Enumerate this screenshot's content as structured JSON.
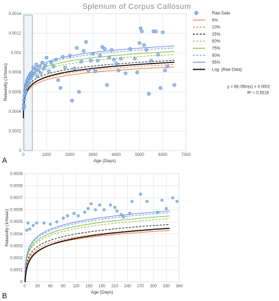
{
  "colors": {
    "raw": "#5b8fd6",
    "p5": "#ef7b45",
    "p10": "#ef7b45",
    "p25": "#222222",
    "p50": "#7fc241",
    "p75": "#7fc241",
    "p90": "#6b8fe0",
    "p95": "#6b8fe0",
    "log": "#000000"
  },
  "chart_data": [
    {
      "type": "scatter",
      "panel_label": "A",
      "title": "Splenium of Corpus Callosum",
      "xlabel": "Age (Days)",
      "ylabel": "Relaxivity (1/msec)",
      "xlim": [
        0,
        7000
      ],
      "ylim": [
        0,
        0.0014
      ],
      "xticks": [
        "0",
        "1000",
        "2000",
        "3000",
        "4000",
        "5000",
        "6000",
        "7000"
      ],
      "yticks": [
        "0",
        "0.0002",
        "0.0004",
        "0.0006",
        "0.0008",
        "0.001",
        "0.0012",
        "0.0014"
      ],
      "equation": "y = 8E-05ln(x) + 0.0002",
      "r2": "R² = 0.5516",
      "legend": [
        "Raw Data",
        "5%",
        "10%",
        "25%",
        "50%",
        "75%",
        "90%",
        "95%",
        "Log. (Raw Data)"
      ],
      "raw_points": [
        [
          10,
          0.00043
        ],
        [
          20,
          0.00047
        ],
        [
          30,
          0.00052
        ],
        [
          40,
          0.00045
        ],
        [
          50,
          0.00056
        ],
        [
          60,
          0.00061
        ],
        [
          80,
          0.00058
        ],
        [
          100,
          0.00066
        ],
        [
          120,
          0.0006
        ],
        [
          150,
          0.00069
        ],
        [
          180,
          0.00072
        ],
        [
          200,
          0.00066
        ],
        [
          230,
          0.00075
        ],
        [
          260,
          0.0007
        ],
        [
          300,
          0.00078
        ],
        [
          330,
          0.00074
        ],
        [
          360,
          0.0008
        ],
        [
          400,
          0.00077
        ],
        [
          430,
          0.00085
        ],
        [
          470,
          0.00079
        ],
        [
          520,
          0.00083
        ],
        [
          560,
          0.00088
        ],
        [
          600,
          0.00076
        ],
        [
          650,
          0.00082
        ],
        [
          700,
          0.00086
        ],
        [
          760,
          0.00079
        ],
        [
          820,
          0.0009
        ],
        [
          880,
          0.00084
        ],
        [
          950,
          0.00087
        ],
        [
          1000,
          0.00095
        ],
        [
          1100,
          0.00081
        ],
        [
          1200,
          0.0009
        ],
        [
          1300,
          0.00086
        ],
        [
          1400,
          0.00093
        ],
        [
          1500,
          0.00072
        ],
        [
          1600,
          0.00064
        ],
        [
          1700,
          0.00096
        ],
        [
          1800,
          0.00085
        ],
        [
          2000,
          0.00097
        ],
        [
          2100,
          0.00051
        ],
        [
          2200,
          0.00084
        ],
        [
          2300,
          0.00105
        ],
        [
          2400,
          0.0006
        ],
        [
          2500,
          0.00091
        ],
        [
          2600,
          0.00102
        ],
        [
          2700,
          0.00111
        ],
        [
          2800,
          0.00082
        ],
        [
          2900,
          0.00092
        ],
        [
          3000,
          0.00099
        ],
        [
          3100,
          0.00081
        ],
        [
          3200,
          0.00092
        ],
        [
          3300,
          0.00097
        ],
        [
          3400,
          0.00106
        ],
        [
          3500,
          0.00104
        ],
        [
          3600,
          0.00067
        ],
        [
          3700,
          0.00095
        ],
        [
          3800,
          0.00103
        ],
        [
          3900,
          0.00093
        ],
        [
          4000,
          0.00089
        ],
        [
          4100,
          0.00082
        ],
        [
          4200,
          0.00094
        ],
        [
          4400,
          0.00079
        ],
        [
          4600,
          0.00104
        ],
        [
          4800,
          0.00094
        ],
        [
          4900,
          0.0008
        ],
        [
          5000,
          0.0011
        ],
        [
          5050,
          0.00125
        ],
        [
          5100,
          0.00122
        ],
        [
          5200,
          0.00108
        ],
        [
          5300,
          0.00103
        ],
        [
          5400,
          0.00058
        ],
        [
          5500,
          0.00092
        ],
        [
          5600,
          0.00122
        ],
        [
          5700,
          0.00122
        ],
        [
          5800,
          0.00098
        ],
        [
          5900,
          0.00064
        ],
        [
          6000,
          0.00121
        ],
        [
          6100,
          0.00082
        ],
        [
          6200,
          0.00086
        ],
        [
          6500,
          0.00067
        ]
      ]
    },
    {
      "type": "scatter",
      "panel_label": "B",
      "xlabel": "Age (Days)",
      "ylabel": "Relaxivity (1/msec)",
      "xlim": [
        0,
        360
      ],
      "ylim": [
        0,
        0.0009
      ],
      "xticks": [
        "0",
        "30",
        "60",
        "90",
        "120",
        "150",
        "180",
        "210",
        "240",
        "270",
        "300",
        "330",
        "360"
      ],
      "yticks": [
        "0",
        "0.0001",
        "0.0002",
        "0.0003",
        "0.0004",
        "0.0005",
        "0.0006",
        "0.0007",
        "0.0008",
        "0.0009"
      ],
      "raw_points": [
        [
          5,
          0.00043
        ],
        [
          8,
          0.00049
        ],
        [
          12,
          0.00044
        ],
        [
          20,
          0.00047
        ],
        [
          28,
          0.00049
        ],
        [
          45,
          0.00049
        ],
        [
          60,
          0.00048
        ],
        [
          75,
          0.0005
        ],
        [
          90,
          0.00053
        ],
        [
          100,
          0.00055
        ],
        [
          115,
          0.00057
        ],
        [
          125,
          0.00055
        ],
        [
          140,
          0.00058
        ],
        [
          148,
          0.00061
        ],
        [
          155,
          0.00065
        ],
        [
          165,
          0.0006
        ],
        [
          175,
          0.00064
        ],
        [
          185,
          0.0006
        ],
        [
          200,
          0.00064
        ],
        [
          210,
          0.00062
        ],
        [
          215,
          0.00059
        ],
        [
          225,
          0.00056
        ],
        [
          230,
          0.00054
        ],
        [
          245,
          0.00057
        ],
        [
          250,
          0.00067
        ],
        [
          270,
          0.00073
        ],
        [
          285,
          0.00067
        ],
        [
          310,
          0.00058
        ],
        [
          320,
          0.00068
        ],
        [
          330,
          0.00061
        ],
        [
          345,
          0.0007
        ],
        [
          355,
          0.00067
        ]
      ]
    }
  ]
}
